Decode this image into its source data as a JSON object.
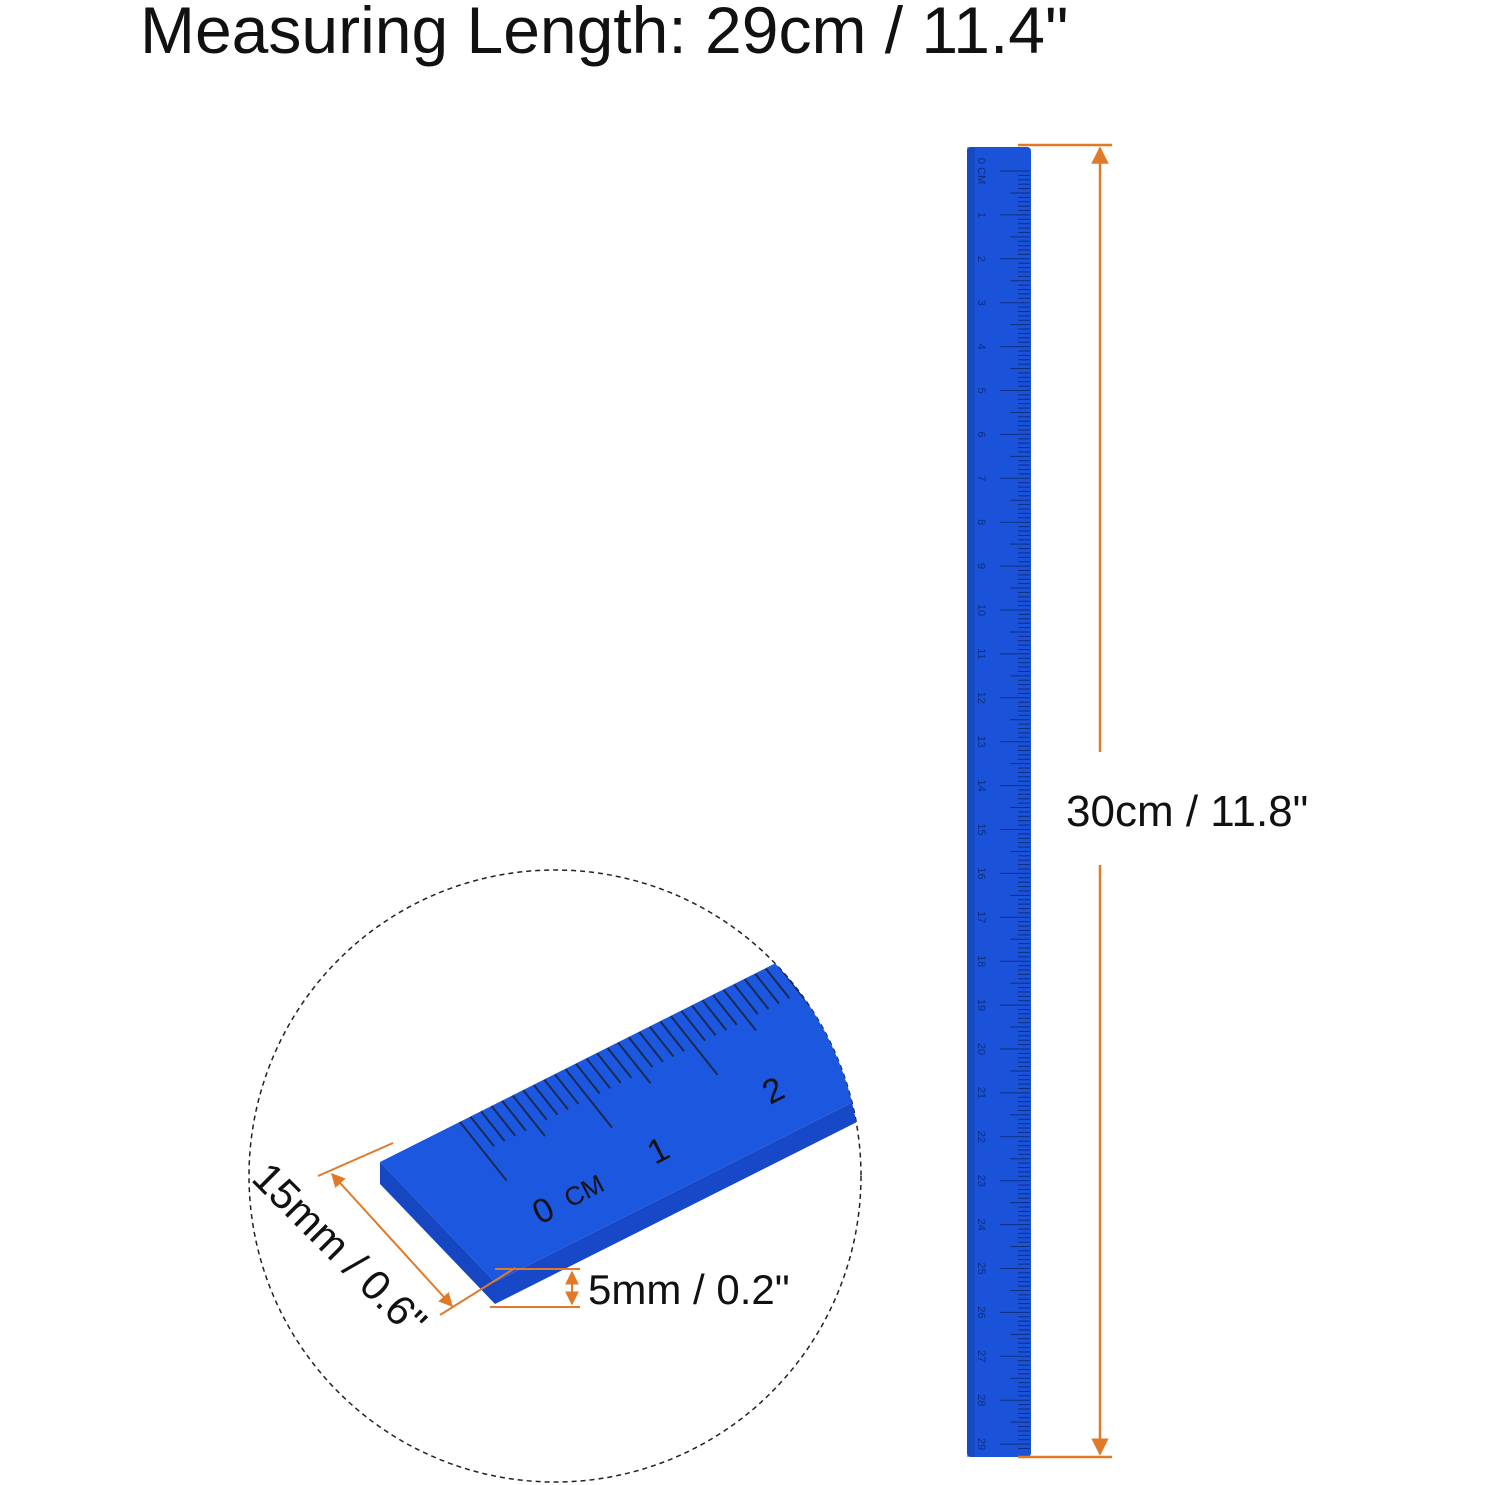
{
  "title": "Measuring Length: 29cm / 11.4\"",
  "dimensions": {
    "length": "30cm / 11.8\"",
    "width": "15mm / 0.6\"",
    "thickness": "5mm / 0.2\""
  },
  "ruler": {
    "unit_label": "CM",
    "numbers": [
      "0",
      "1",
      "2",
      "3",
      "4",
      "5",
      "6",
      "7",
      "8",
      "9",
      "10",
      "11",
      "12",
      "13",
      "14",
      "15",
      "16",
      "17",
      "18",
      "19",
      "20",
      "21",
      "22",
      "23",
      "24",
      "25",
      "26",
      "27",
      "28",
      "29"
    ]
  },
  "detail": {
    "numbers": [
      "0",
      "1",
      "2"
    ],
    "unit_label": "CM"
  },
  "colors": {
    "ruler": "#1a52d9",
    "ruler_dark": "#1440b0",
    "dimension_line": "#e07a28",
    "text": "#111111"
  }
}
